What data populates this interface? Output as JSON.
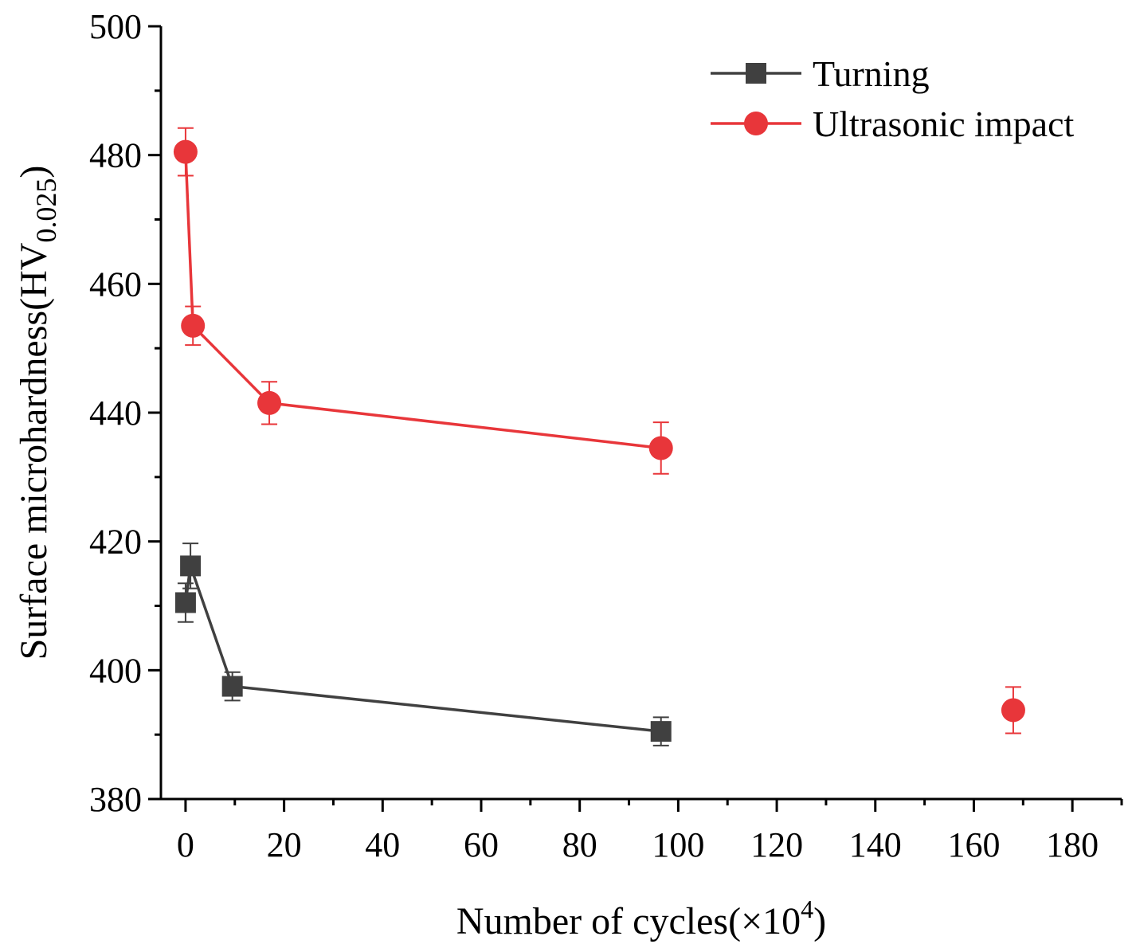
{
  "chart_data": {
    "type": "line",
    "xlabel": "Number of cycles(×10",
    "xlabel_sup": "4",
    "xlabel_end": ")",
    "ylabel": "Surface microhardness(HV",
    "ylabel_sub": "0.025",
    "ylabel_end": ")",
    "xlim": [
      -5,
      190
    ],
    "ylim": [
      380,
      500
    ],
    "xticks": [
      0,
      20,
      40,
      60,
      80,
      100,
      120,
      140,
      160,
      180
    ],
    "yticks": [
      380,
      400,
      420,
      440,
      460,
      480,
      500
    ],
    "legend_position": "top-right",
    "series": [
      {
        "name": "Turning",
        "color": "#404040",
        "marker": "square",
        "points": [
          {
            "x": 0,
            "y": 410.5,
            "err": 3
          },
          {
            "x": 1,
            "y": 416.2,
            "err": 3.5
          },
          {
            "x": 9.5,
            "y": 397.5,
            "err": 2.2
          },
          {
            "x": 96.5,
            "y": 390.5,
            "err": 2.2
          }
        ]
      },
      {
        "name": "Ultrasonic impact",
        "color": "#e8363a",
        "marker": "circle",
        "points": [
          {
            "x": 0,
            "y": 480.5,
            "err": 3.7
          },
          {
            "x": 1.5,
            "y": 453.5,
            "err": 3
          },
          {
            "x": 17,
            "y": 441.5,
            "err": 3.3
          },
          {
            "x": 96.5,
            "y": 434.5,
            "err": 4
          }
        ]
      },
      {
        "name": "",
        "color": "#e8363a",
        "marker": "circle",
        "points": [
          {
            "x": 168,
            "y": 393.8,
            "err": 3.6
          }
        ]
      }
    ]
  }
}
